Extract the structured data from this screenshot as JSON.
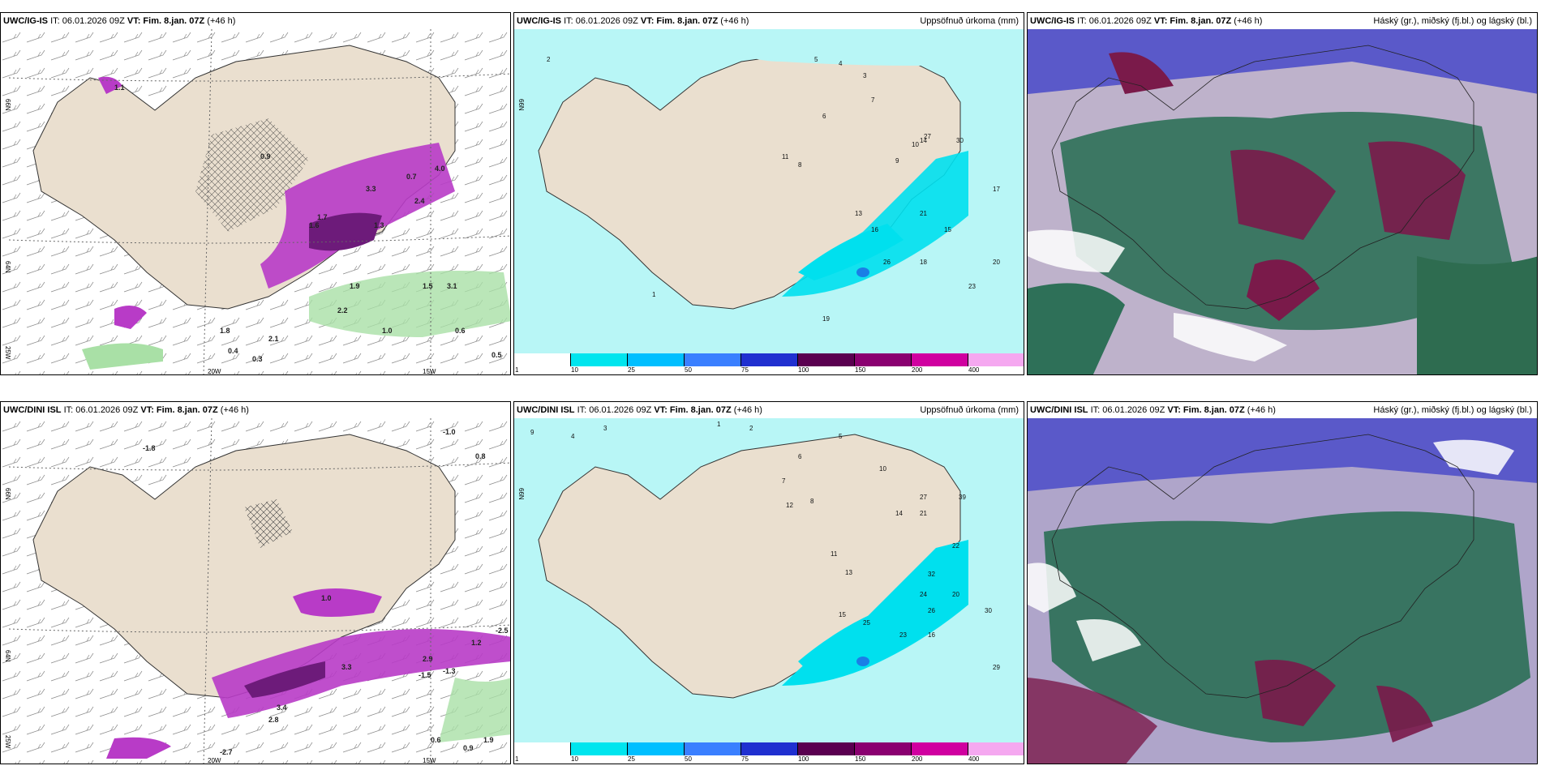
{
  "panels": [
    {
      "id": "p1",
      "model": "UWC/IG-IS",
      "it": "IT: 06.01.2026 09Z",
      "vt_label": "VT:",
      "vt": "Fim. 8.jan. 07Z",
      "lead": "(+46 h)",
      "right_title": "",
      "lat_labels": [
        "66N",
        "64N",
        "25W"
      ],
      "lon_labels": [
        "20W",
        "15W"
      ],
      "values": [
        "1.1",
        "0.7",
        "0.9",
        "1.7",
        "1.6",
        "4.0",
        "3.3",
        "2.4",
        "1.3",
        "1.9",
        "1.5",
        "3.1",
        "2.2",
        "2.1",
        "1.8",
        "1.0",
        "0.6",
        "0.5",
        "0.4",
        "0.3"
      ]
    },
    {
      "id": "p2",
      "model": "UWC/IG-IS",
      "it": "IT: 06.01.2026 09Z",
      "vt_label": "VT:",
      "vt": "Fim. 8.jan. 07Z",
      "lead": "(+46 h)",
      "right_title": "Uppsöfnuð úrkoma (mm)",
      "lat_labels": [
        "66N"
      ],
      "lon_labels": [],
      "values": [
        "2",
        "5",
        "4",
        "3",
        "6",
        "7",
        "8",
        "9",
        "10",
        "11",
        "13",
        "14",
        "15",
        "16",
        "17",
        "18",
        "19",
        "20",
        "21",
        "23",
        "26",
        "27",
        "30",
        "1"
      ]
    },
    {
      "id": "p3",
      "model": "UWC/IG-IS",
      "it": "IT: 06.01.2026 09Z",
      "vt_label": "VT:",
      "vt": "Fim. 8.jan. 07Z",
      "lead": "(+46 h)",
      "right_title": "Háský (gr.), miðský (fj.bl.) og lágský (bl.)",
      "lat_labels": [],
      "lon_labels": [],
      "values": []
    },
    {
      "id": "p4",
      "model": "UWC/DINI ISL",
      "it": "IT: 06.01.2026 09Z",
      "vt_label": "VT:",
      "vt": "Fim. 8.jan. 07Z",
      "lead": "(+46 h)",
      "right_title": "",
      "lat_labels": [
        "66N",
        "64N",
        "25W"
      ],
      "lon_labels": [
        "20W",
        "15W"
      ],
      "values": [
        "-1.8",
        "-1.0",
        "0.8",
        "1.0",
        "3.3",
        "2.8",
        "3.4",
        "2.9",
        "-1.5",
        "-1.3",
        "-2.5",
        "1.2",
        "0.6",
        "-2.7",
        "0.9",
        "1.9"
      ]
    },
    {
      "id": "p5",
      "model": "UWC/DINI ISL",
      "it": "IT: 06.01.2026 09Z",
      "vt_label": "VT:",
      "vt": "Fim. 8.jan. 07Z",
      "lead": "(+46 h)",
      "right_title": "Uppsöfnuð úrkoma (mm)",
      "lat_labels": [
        "66N"
      ],
      "lon_labels": [],
      "values": [
        "9",
        "4",
        "3",
        "1",
        "2",
        "5",
        "6",
        "7",
        "8",
        "10",
        "11",
        "12",
        "13",
        "14",
        "15",
        "16",
        "20",
        "21",
        "22",
        "23",
        "24",
        "25",
        "26",
        "27",
        "30",
        "32",
        "39",
        "29"
      ]
    },
    {
      "id": "p6",
      "model": "UWC/DINI ISL",
      "it": "IT: 06.01.2026 09Z",
      "vt_label": "VT:",
      "vt": "Fim. 8.jan. 07Z",
      "lead": "(+46 h)",
      "right_title": "Háský (gr.), miðský (fj.bl.) og lágský (bl.)",
      "lat_labels": [],
      "lon_labels": [],
      "values": []
    }
  ],
  "legend": {
    "labels": [
      "1",
      "10",
      "25",
      "50",
      "75",
      "100",
      "150",
      "200",
      "400"
    ],
    "colors": [
      "#ffffff",
      "#00e5ee",
      "#00bfff",
      "#3a7fff",
      "#2030d0",
      "#5a0050",
      "#8a0070",
      "#d000a0",
      "#f5a8f0"
    ]
  },
  "colors": {
    "land": "#eadfcf",
    "precip_light": "#b8f6f6",
    "precip_mid": "#00e0ee",
    "precip_strong": "#1a7fe6",
    "snow_heavy": "#b83bc7",
    "snow_core": "#6d1b7a",
    "green_light": "#a9e0a6",
    "green_dark": "#2e6c50",
    "cloud_high": "#2e7058",
    "cloud_mid": "#7a1a4a",
    "cloud_low": "#5a59c9"
  }
}
